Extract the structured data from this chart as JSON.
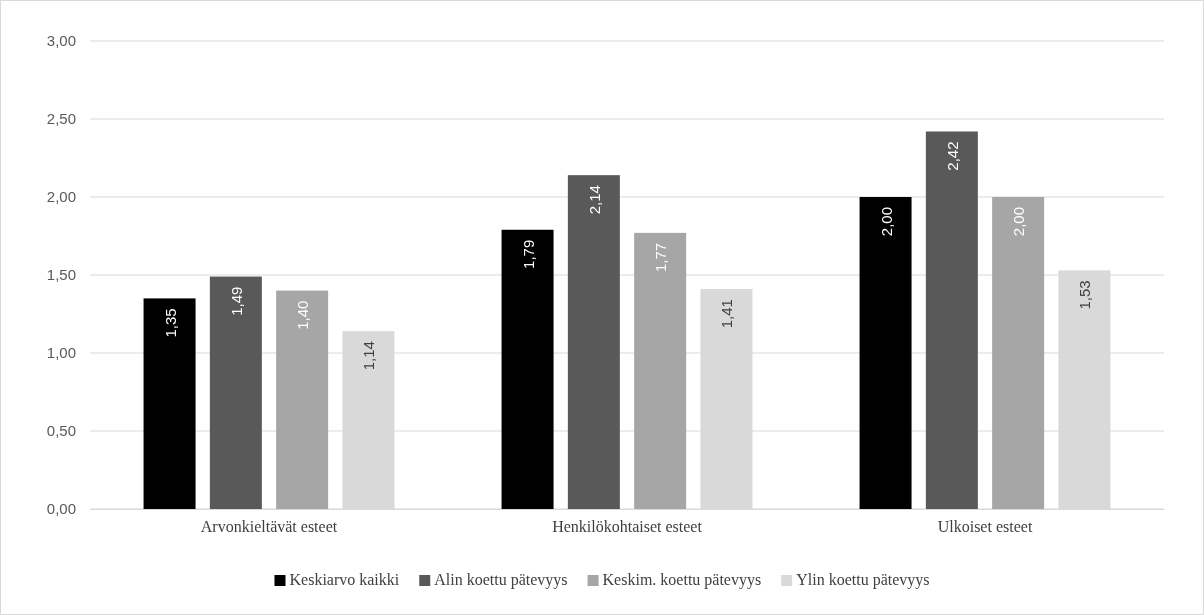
{
  "chart_data": {
    "type": "bar",
    "categories": [
      "Arvonkieltävät esteet",
      "Henkilökohtaiset esteet",
      "Ulkoiset esteet"
    ],
    "series": [
      {
        "name": "Keskiarvo kaikki",
        "color": "#000000",
        "values": [
          1.35,
          1.79,
          2.0
        ],
        "value_labels": [
          "1,35",
          "1,79",
          "2,00"
        ]
      },
      {
        "name": "Alin koettu pätevyys",
        "color": "#595959",
        "values": [
          1.49,
          2.14,
          2.42
        ],
        "value_labels": [
          "1,49",
          "2,14",
          "2,42"
        ]
      },
      {
        "name": "Keskim. koettu pätevyys",
        "color": "#a6a6a6",
        "values": [
          1.4,
          1.77,
          2.0
        ],
        "value_labels": [
          "1,40",
          "1,77",
          "2,00"
        ]
      },
      {
        "name": "Ylin koettu pätevyys",
        "color": "#d9d9d9",
        "values": [
          1.14,
          1.41,
          1.53
        ],
        "value_labels": [
          "1,14",
          "1,41",
          "1,53"
        ]
      }
    ],
    "ylim": [
      0,
      3
    ],
    "yticks": [
      {
        "value": 0,
        "label": "0,00"
      },
      {
        "value": 0.5,
        "label": "0,50"
      },
      {
        "value": 1,
        "label": "1,00"
      },
      {
        "value": 1.5,
        "label": "1,50"
      },
      {
        "value": 2,
        "label": "2,00"
      },
      {
        "value": 2.5,
        "label": "2,50"
      },
      {
        "value": 3,
        "label": "3,00"
      }
    ],
    "grid": "y",
    "legend": "bottom"
  }
}
